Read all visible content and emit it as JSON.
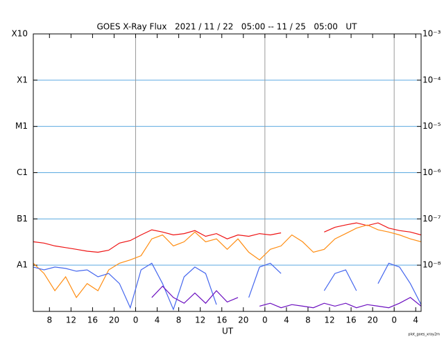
{
  "chart_data": {
    "type": "line",
    "title": "GOES X-Ray Flux   2021 / 11 / 22   05:00 -- 11 / 25   05:00   UT",
    "xlabel": "UT",
    "footnote": "plot_goes_xray2m",
    "x": [
      0,
      2,
      4,
      6,
      8,
      10,
      12,
      14,
      16,
      18,
      20,
      22,
      24,
      26,
      28,
      30,
      32,
      34,
      36,
      38,
      40,
      42,
      44,
      46,
      48,
      50,
      52,
      54,
      56,
      58,
      60,
      62,
      64,
      66,
      68,
      70,
      72
    ],
    "xlim": [
      0,
      72
    ],
    "xticks": [
      {
        "value": 3,
        "label": "8"
      },
      {
        "value": 7,
        "label": "12"
      },
      {
        "value": 11,
        "label": "16"
      },
      {
        "value": 15,
        "label": "20"
      },
      {
        "value": 19,
        "label": "0"
      },
      {
        "value": 23,
        "label": "4"
      },
      {
        "value": 27,
        "label": "8"
      },
      {
        "value": 31,
        "label": "12"
      },
      {
        "value": 35,
        "label": "16"
      },
      {
        "value": 39,
        "label": "20"
      },
      {
        "value": 43,
        "label": "0"
      },
      {
        "value": 47,
        "label": "4"
      },
      {
        "value": 51,
        "label": "8"
      },
      {
        "value": 55,
        "label": "12"
      },
      {
        "value": 59,
        "label": "16"
      },
      {
        "value": 63,
        "label": "20"
      },
      {
        "value": 67,
        "label": "0"
      },
      {
        "value": 71,
        "label": "4"
      }
    ],
    "day_lines": [
      19,
      43,
      67
    ],
    "log_scale": true,
    "grid": true,
    "grid_color": "#5aa9e0",
    "ylim": [
      1e-09,
      0.001
    ],
    "yticks": [
      {
        "value": 0.001,
        "label": "X10"
      },
      {
        "value": 0.0001,
        "label": "X1"
      },
      {
        "value": 1e-05,
        "label": "M1"
      },
      {
        "value": 1e-06,
        "label": "C1"
      },
      {
        "value": 1e-07,
        "label": "B1"
      },
      {
        "value": 1e-08,
        "label": "A1"
      }
    ],
    "y2lim": [
      1e-09,
      0.001
    ],
    "y2ticks": [
      {
        "value": 0.001,
        "label": "10⁻³"
      },
      {
        "value": 0.0001,
        "label": "10⁻⁴"
      },
      {
        "value": 1e-05,
        "label": "10⁻⁵"
      },
      {
        "value": 1e-06,
        "label": "10⁻⁶"
      },
      {
        "value": 1e-07,
        "label": "10⁻⁷"
      },
      {
        "value": 1e-08,
        "label": "10⁻⁸"
      }
    ],
    "series": [
      {
        "color": "#ee1111",
        "values": [
          3.2e-08,
          3e-08,
          2.6e-08,
          2.4e-08,
          2.2e-08,
          2e-08,
          1.9e-08,
          2.1e-08,
          3e-08,
          3.4e-08,
          4.5e-08,
          5.8e-08,
          5.2e-08,
          4.5e-08,
          4.8e-08,
          5.6e-08,
          4.2e-08,
          4.8e-08,
          3.7e-08,
          4.5e-08,
          4.2e-08,
          4.8e-08,
          4.5e-08,
          5e-08,
          null,
          null,
          null,
          5.2e-08,
          6.6e-08,
          7.4e-08,
          8.2e-08,
          7.2e-08,
          8.2e-08,
          6.3e-08,
          5.6e-08,
          5.2e-08,
          4.5e-08
        ]
      },
      {
        "color": "#ff8c10",
        "values": [
          1.1e-08,
          6.6e-09,
          2.8e-09,
          5.6e-09,
          2e-09,
          4e-09,
          2.8e-09,
          7.9e-09,
          1.1e-08,
          1.3e-08,
          1.6e-08,
          3.7e-08,
          4.5e-08,
          2.6e-08,
          3.2e-08,
          5.2e-08,
          3.2e-08,
          3.7e-08,
          2.2e-08,
          3.7e-08,
          1.9e-08,
          1.3e-08,
          2.2e-08,
          2.6e-08,
          4.5e-08,
          3.2e-08,
          1.9e-08,
          2.2e-08,
          3.7e-08,
          4.8e-08,
          6.3e-08,
          7.4e-08,
          5.8e-08,
          5.2e-08,
          4.5e-08,
          3.7e-08,
          3.2e-08
        ]
      },
      {
        "color": "#4466ee",
        "values": [
          9.1e-09,
          7.9e-09,
          9.1e-09,
          8.5e-09,
          7.4e-09,
          7.9e-09,
          5.6e-09,
          6.6e-09,
          4e-09,
          1.2e-09,
          7.9e-09,
          1.1e-08,
          4e-09,
          1.1e-09,
          5.6e-09,
          9.1e-09,
          6.6e-09,
          1.4e-09,
          null,
          null,
          2e-09,
          9.1e-09,
          1.1e-08,
          6.6e-09,
          null,
          null,
          null,
          2.8e-09,
          6.6e-09,
          7.9e-09,
          2.8e-09,
          null,
          4e-09,
          1.1e-08,
          9.1e-09,
          4e-09,
          1.4e-09
        ]
      },
      {
        "color": "#6a0dbf",
        "values": [
          null,
          null,
          null,
          null,
          null,
          null,
          null,
          null,
          null,
          null,
          null,
          2e-09,
          3.5e-09,
          2e-09,
          1.5e-09,
          2.5e-09,
          1.5e-09,
          2.8e-09,
          1.6e-09,
          2e-09,
          null,
          1.3e-09,
          1.5e-09,
          1.2e-09,
          1.4e-09,
          1.3e-09,
          1.2e-09,
          1.5e-09,
          1.3e-09,
          1.5e-09,
          1.2e-09,
          1.4e-09,
          1.3e-09,
          1.2e-09,
          1.5e-09,
          2e-09,
          1.3e-09
        ]
      }
    ]
  }
}
